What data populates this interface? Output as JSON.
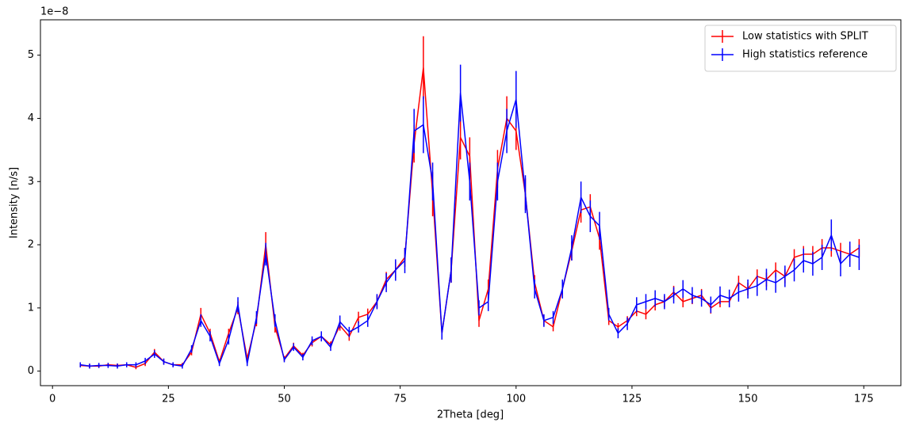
{
  "chart_data": {
    "type": "line_errorbar",
    "xlabel": "2Theta [deg]",
    "ylabel": "Intensity [n/s]",
    "y_offset_label": "1e−8",
    "xlim": [
      -2.6,
      183
    ],
    "ylim": [
      -0.23,
      5.56
    ],
    "xticks": [
      0,
      25,
      50,
      75,
      100,
      125,
      150,
      175
    ],
    "yticks": [
      0,
      1,
      2,
      3,
      4,
      5
    ],
    "legend_position": "upper-right",
    "x": [
      6,
      8,
      10,
      12,
      14,
      16,
      18,
      20,
      22,
      24,
      26,
      28,
      30,
      32,
      34,
      36,
      38,
      40,
      42,
      44,
      46,
      48,
      50,
      52,
      54,
      56,
      58,
      60,
      62,
      64,
      66,
      68,
      70,
      72,
      74,
      76,
      78,
      80,
      82,
      84,
      86,
      88,
      90,
      92,
      94,
      96,
      98,
      100,
      102,
      104,
      106,
      108,
      110,
      112,
      114,
      116,
      118,
      120,
      122,
      124,
      126,
      128,
      130,
      132,
      134,
      136,
      138,
      140,
      142,
      144,
      146,
      148,
      150,
      152,
      154,
      156,
      158,
      160,
      162,
      164,
      166,
      168,
      170,
      172,
      174
    ],
    "series": [
      {
        "name": "Low statistics with SPLIT",
        "color": "#ff0000",
        "values": [
          0.09,
          0.08,
          0.08,
          0.1,
          0.09,
          0.1,
          0.06,
          0.12,
          0.3,
          0.15,
          0.1,
          0.1,
          0.3,
          0.9,
          0.6,
          0.15,
          0.6,
          1.0,
          0.2,
          0.8,
          2.0,
          0.7,
          0.2,
          0.4,
          0.25,
          0.45,
          0.55,
          0.42,
          0.72,
          0.55,
          0.85,
          0.9,
          1.1,
          1.45,
          1.6,
          1.8,
          3.6,
          4.8,
          2.8,
          0.6,
          1.6,
          3.7,
          3.4,
          0.8,
          1.3,
          3.2,
          4.0,
          3.8,
          2.8,
          1.4,
          0.8,
          0.7,
          1.3,
          1.9,
          2.55,
          2.6,
          2.1,
          0.8,
          0.7,
          0.8,
          0.95,
          0.9,
          1.05,
          1.1,
          1.25,
          1.1,
          1.15,
          1.2,
          1.0,
          1.1,
          1.1,
          1.4,
          1.3,
          1.5,
          1.45,
          1.6,
          1.5,
          1.8,
          1.85,
          1.85,
          1.95,
          1.95,
          1.9,
          1.85,
          1.95
        ],
        "errors": [
          0.03,
          0.03,
          0.03,
          0.03,
          0.03,
          0.03,
          0.03,
          0.04,
          0.05,
          0.04,
          0.03,
          0.03,
          0.05,
          0.1,
          0.07,
          0.04,
          0.07,
          0.1,
          0.05,
          0.09,
          0.2,
          0.09,
          0.04,
          0.05,
          0.04,
          0.06,
          0.06,
          0.05,
          0.08,
          0.07,
          0.09,
          0.09,
          0.1,
          0.12,
          0.13,
          0.15,
          0.3,
          0.5,
          0.35,
          0.1,
          0.2,
          0.35,
          0.3,
          0.1,
          0.15,
          0.3,
          0.35,
          0.3,
          0.25,
          0.12,
          0.08,
          0.07,
          0.1,
          0.15,
          0.2,
          0.2,
          0.18,
          0.07,
          0.06,
          0.07,
          0.08,
          0.08,
          0.09,
          0.09,
          0.1,
          0.09,
          0.09,
          0.1,
          0.09,
          0.09,
          0.09,
          0.11,
          0.1,
          0.11,
          0.11,
          0.12,
          0.11,
          0.13,
          0.13,
          0.13,
          0.14,
          0.14,
          0.13,
          0.13,
          0.14
        ]
      },
      {
        "name": "High statistics reference",
        "color": "#0000ff",
        "values": [
          0.1,
          0.08,
          0.09,
          0.09,
          0.08,
          0.1,
          0.1,
          0.16,
          0.27,
          0.15,
          0.1,
          0.08,
          0.35,
          0.8,
          0.55,
          0.12,
          0.5,
          1.05,
          0.12,
          0.85,
          1.85,
          0.8,
          0.18,
          0.38,
          0.22,
          0.48,
          0.55,
          0.38,
          0.78,
          0.62,
          0.7,
          0.8,
          1.1,
          1.4,
          1.6,
          1.75,
          3.8,
          3.9,
          3.0,
          0.6,
          1.6,
          4.4,
          3.0,
          1.0,
          1.1,
          3.0,
          3.8,
          4.3,
          2.8,
          1.3,
          0.8,
          0.85,
          1.3,
          1.95,
          2.75,
          2.45,
          2.3,
          0.9,
          0.6,
          0.75,
          1.05,
          1.1,
          1.15,
          1.1,
          1.2,
          1.3,
          1.2,
          1.15,
          1.05,
          1.2,
          1.15,
          1.25,
          1.3,
          1.35,
          1.45,
          1.4,
          1.5,
          1.6,
          1.75,
          1.7,
          1.8,
          2.15,
          1.7,
          1.85,
          1.8
        ],
        "errors": [
          0.04,
          0.04,
          0.04,
          0.04,
          0.04,
          0.04,
          0.04,
          0.05,
          0.06,
          0.05,
          0.04,
          0.04,
          0.06,
          0.1,
          0.08,
          0.04,
          0.08,
          0.12,
          0.04,
          0.1,
          0.18,
          0.1,
          0.04,
          0.06,
          0.05,
          0.07,
          0.08,
          0.06,
          0.1,
          0.08,
          0.09,
          0.1,
          0.12,
          0.15,
          0.17,
          0.2,
          0.35,
          0.45,
          0.3,
          0.1,
          0.2,
          0.45,
          0.3,
          0.12,
          0.15,
          0.3,
          0.35,
          0.45,
          0.3,
          0.15,
          0.1,
          0.1,
          0.15,
          0.2,
          0.25,
          0.25,
          0.22,
          0.1,
          0.08,
          0.1,
          0.12,
          0.12,
          0.13,
          0.12,
          0.13,
          0.14,
          0.13,
          0.13,
          0.13,
          0.14,
          0.14,
          0.15,
          0.15,
          0.16,
          0.17,
          0.16,
          0.17,
          0.18,
          0.19,
          0.19,
          0.2,
          0.25,
          0.2,
          0.2,
          0.2
        ]
      }
    ]
  }
}
